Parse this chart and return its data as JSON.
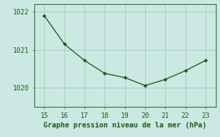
{
  "x": [
    15,
    16,
    17,
    18,
    19,
    20,
    21,
    22,
    23
  ],
  "y": [
    1021.9,
    1021.15,
    1020.72,
    1020.38,
    1020.27,
    1020.06,
    1020.22,
    1020.45,
    1020.72
  ],
  "line_color": "#1a5c1a",
  "marker": "D",
  "marker_size": 2.5,
  "bg_color": "#cce8e2",
  "grid_color": "#99ccbb",
  "title": "Graphe pression niveau de la mer (hPa)",
  "title_color": "#1a5c1a",
  "title_fontsize": 7.5,
  "xlim": [
    14.5,
    23.5
  ],
  "ylim": [
    1019.5,
    1022.2
  ],
  "yticks": [
    1020,
    1021,
    1022
  ],
  "xticks": [
    15,
    16,
    17,
    18,
    19,
    20,
    21,
    22,
    23
  ],
  "tick_color": "#1a5c1a",
  "tick_fontsize": 7.0,
  "spine_color": "#2d6e2d",
  "spine_bottom_color": "#1a5c1a"
}
